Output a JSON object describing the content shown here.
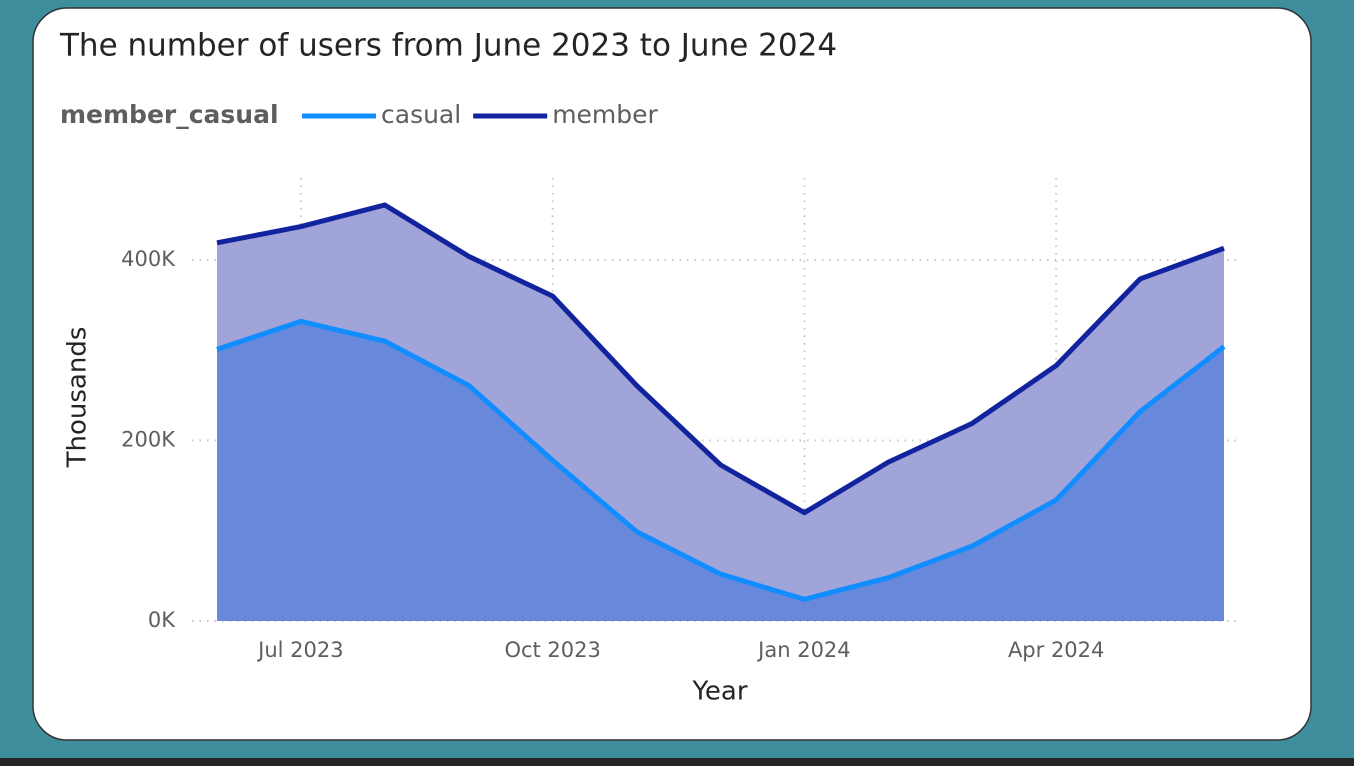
{
  "chart_data": {
    "type": "area",
    "title": "The number of users from June 2023 to June 2024",
    "legend_title": "member_casual",
    "x_label": "Year",
    "y_label": "Thousands",
    "categories": [
      null,
      "Jul 2023",
      null,
      null,
      "Oct 2023",
      null,
      null,
      "Jan 2024",
      null,
      null,
      "Apr 2024",
      null,
      null
    ],
    "series": [
      {
        "name": "casual",
        "color": "#118dff",
        "fill": "#6889db",
        "values": [
          301,
          332,
          310,
          261,
          178,
          99,
          52,
          24,
          48,
          83,
          134,
          232,
          304
        ]
      },
      {
        "name": "member",
        "color": "#12239e",
        "fill": "#a0a4d8",
        "values": [
          419,
          437,
          461,
          404,
          360,
          261,
          173,
          120,
          176,
          219,
          283,
          379,
          413
        ]
      }
    ],
    "ylim": [
      0,
      400
    ],
    "yticks": [
      {
        "value": 0,
        "label": "0K"
      },
      {
        "value": 200,
        "label": "200K"
      },
      {
        "value": 400,
        "label": "400K"
      }
    ],
    "grid": true
  }
}
